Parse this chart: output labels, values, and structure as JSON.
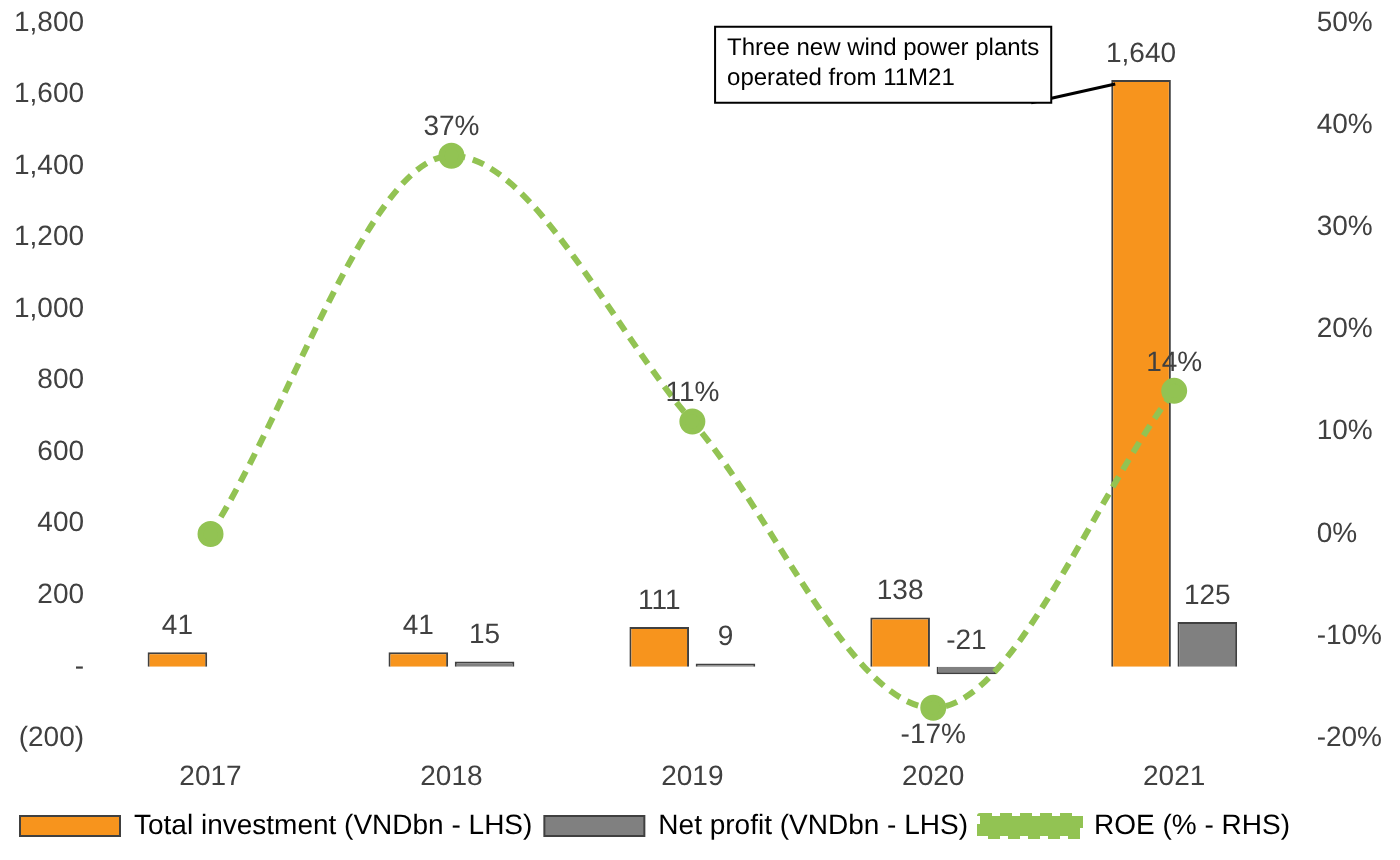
{
  "chart_data": {
    "type": "bar",
    "categories": [
      "2017",
      "2018",
      "2019",
      "2020",
      "2021"
    ],
    "series": [
      {
        "name": "Total investment (VNDbn - LHS)",
        "color": "#f7941d",
        "values": [
          41,
          41,
          111,
          138,
          1640
        ],
        "value_labels": [
          "41",
          "41",
          "111",
          "138",
          "1,640"
        ]
      },
      {
        "name": "Net profit (VNDbn - LHS)",
        "color": "#808080",
        "values": [
          null,
          15,
          9,
          -21,
          125
        ],
        "value_labels": [
          null,
          "15",
          "9",
          "-21",
          "125"
        ]
      },
      {
        "name": "ROE (% - RHS)",
        "type": "line",
        "axis": "y2",
        "color": "#92c353",
        "values": [
          0,
          37,
          11,
          -17,
          14
        ],
        "value_labels": [
          null,
          "37%",
          "11%",
          "-17%",
          "14%"
        ],
        "marker": "circle",
        "line_style": "dashed"
      }
    ],
    "ylim": [
      -200,
      1800
    ],
    "yticks": [
      {
        "value": -200,
        "label": "(200)"
      },
      {
        "value": 0,
        "label": "-"
      },
      200,
      400,
      600,
      800,
      {
        "value": 1000,
        "label": "1,000"
      },
      {
        "value": 1200,
        "label": "1,200"
      },
      {
        "value": 1400,
        "label": "1,400"
      },
      {
        "value": 1600,
        "label": "1,600"
      },
      {
        "value": 1800,
        "label": "1,800"
      }
    ],
    "y2lim": [
      -20,
      50
    ],
    "y2ticks": [
      {
        "value": -20,
        "label": "-20%"
      },
      {
        "value": -10,
        "label": "-10%"
      },
      {
        "value": 0,
        "label": "0%"
      },
      {
        "value": 10,
        "label": "10%"
      },
      {
        "value": 20,
        "label": "20%"
      },
      {
        "value": 30,
        "label": "30%"
      },
      {
        "value": 40,
        "label": "40%"
      },
      {
        "value": 50,
        "label": "50%"
      }
    ],
    "annotations": [
      "Three new wind power plants operated from 11M21"
    ],
    "grid": false,
    "legend": "bottom"
  }
}
